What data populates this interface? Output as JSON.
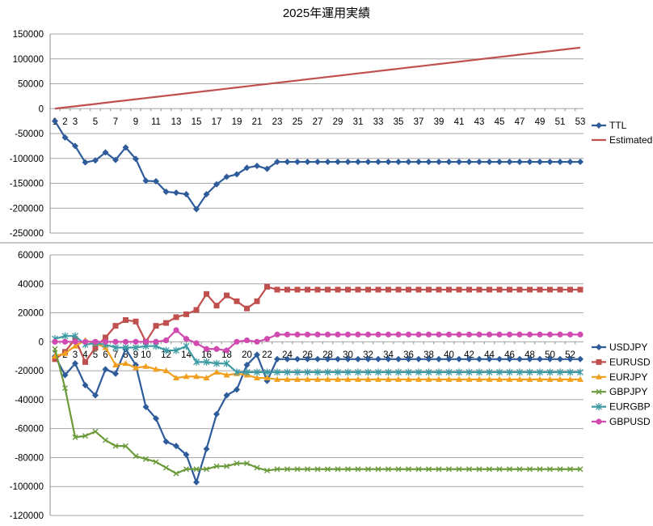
{
  "chart_data": [
    {
      "type": "line",
      "title": "2025年運用実績",
      "xlabel": "",
      "ylabel": "",
      "ylim": [
        -250000,
        150000
      ],
      "yticks": [
        150000,
        100000,
        50000,
        0,
        -50000,
        -100000,
        -150000,
        -200000,
        -250000
      ],
      "xticks": [
        1,
        2,
        3,
        5,
        7,
        9,
        11,
        13,
        15,
        17,
        19,
        21,
        23,
        25,
        27,
        29,
        31,
        33,
        35,
        37,
        39,
        41,
        43,
        45,
        47,
        49,
        51,
        53
      ],
      "x": [
        1,
        2,
        3,
        4,
        5,
        6,
        7,
        8,
        9,
        10,
        11,
        12,
        13,
        14,
        15,
        16,
        17,
        18,
        19,
        20,
        21,
        22,
        23,
        24,
        25,
        26,
        27,
        28,
        29,
        30,
        31,
        32,
        33,
        34,
        35,
        36,
        37,
        38,
        39,
        40,
        41,
        42,
        43,
        44,
        45,
        46,
        47,
        48,
        49,
        50,
        51,
        52,
        53
      ],
      "grid": true,
      "legend": "right",
      "series": [
        {
          "name": "TTL",
          "color": "#2e5b9a",
          "marker": "diamond",
          "values": [
            -25000,
            -58000,
            -75000,
            -108000,
            -104000,
            -88000,
            -103000,
            -78000,
            -101000,
            -145000,
            -146000,
            -167000,
            -169000,
            -172000,
            -202000,
            -172000,
            -152000,
            -137000,
            -132000,
            -119000,
            -115000,
            -121000,
            -107000,
            -107000,
            -107000,
            -107000,
            -107000,
            -107000,
            -107000,
            -107000,
            -107000,
            -107000,
            -107000,
            -107000,
            -107000,
            -107000,
            -107000,
            -107000,
            -107000,
            -107000,
            -107000,
            -107000,
            -107000,
            -107000,
            -107000,
            -107000,
            -107000,
            -107000,
            -107000,
            -107000,
            -107000,
            -107000,
            -107000
          ]
        },
        {
          "name": "Estimated",
          "color": "#c0504d",
          "marker": "none",
          "values": [
            0,
            2400,
            4700,
            7100,
            9400,
            11800,
            14200,
            16500,
            18900,
            21200,
            23600,
            25900,
            28300,
            30700,
            33000,
            35400,
            37700,
            40100,
            42500,
            44800,
            47200,
            49500,
            51900,
            54300,
            56600,
            59000,
            61300,
            63700,
            66000,
            68400,
            70800,
            73100,
            75500,
            77800,
            80200,
            82600,
            84900,
            87300,
            89600,
            92000,
            94300,
            96700,
            99100,
            101400,
            103800,
            106100,
            108500,
            110900,
            113200,
            115600,
            117900,
            120300,
            122600
          ]
        }
      ]
    },
    {
      "type": "line",
      "title": "",
      "xlabel": "",
      "ylabel": "",
      "ylim": [
        -120000,
        60000
      ],
      "yticks": [
        60000,
        40000,
        20000,
        0,
        -20000,
        -40000,
        -60000,
        -80000,
        -100000,
        -120000
      ],
      "xticks": [
        1,
        2,
        3,
        4,
        5,
        6,
        7,
        8,
        9,
        10,
        12,
        14,
        16,
        18,
        20,
        22,
        24,
        26,
        28,
        30,
        32,
        34,
        36,
        38,
        40,
        42,
        44,
        46,
        48,
        50,
        52
      ],
      "x": [
        1,
        2,
        3,
        4,
        5,
        6,
        7,
        8,
        9,
        10,
        11,
        12,
        13,
        14,
        15,
        16,
        17,
        18,
        19,
        20,
        21,
        22,
        23,
        24,
        25,
        26,
        27,
        28,
        29,
        30,
        31,
        32,
        33,
        34,
        35,
        36,
        37,
        38,
        39,
        40,
        41,
        42,
        43,
        44,
        45,
        46,
        47,
        48,
        49,
        50,
        51,
        52,
        53
      ],
      "grid": true,
      "legend": "right",
      "series": [
        {
          "name": "USDJPY",
          "color": "#2e5b9a",
          "marker": "diamond",
          "values": [
            -10000,
            -23000,
            -15000,
            -30000,
            -37000,
            -19000,
            -22000,
            -5000,
            -16000,
            -45000,
            -53000,
            -69000,
            -72000,
            -78000,
            -97000,
            -74000,
            -50000,
            -37000,
            -33000,
            -16000,
            -9000,
            -27000,
            -12000,
            -12000,
            -12000,
            -12000,
            -12000,
            -12000,
            -12000,
            -12000,
            -12000,
            -12000,
            -12000,
            -12000,
            -12000,
            -12000,
            -12000,
            -12000,
            -12000,
            -12000,
            -12000,
            -12000,
            -12000,
            -12000,
            -12000,
            -12000,
            -12000,
            -12000,
            -12000,
            -12000,
            -12000,
            -12000,
            -12000
          ]
        },
        {
          "name": "EURUSD",
          "color": "#c0504d",
          "marker": "square",
          "values": [
            -12000,
            -7000,
            2000,
            -14000,
            -4000,
            3000,
            11000,
            15000,
            14000,
            0,
            11000,
            13000,
            17000,
            19000,
            22000,
            33000,
            25000,
            32000,
            28000,
            23000,
            28000,
            38000,
            36000,
            36000,
            36000,
            36000,
            36000,
            36000,
            36000,
            36000,
            36000,
            36000,
            36000,
            36000,
            36000,
            36000,
            36000,
            36000,
            36000,
            36000,
            36000,
            36000,
            36000,
            36000,
            36000,
            36000,
            36000,
            36000,
            36000,
            36000,
            36000,
            36000,
            36000
          ]
        },
        {
          "name": "EURJPY",
          "color": "#f0a01e",
          "marker": "triangle",
          "values": [
            -10000,
            -8000,
            -3000,
            1000,
            -1000,
            -4000,
            -16000,
            -15000,
            -18000,
            -17000,
            -19000,
            -20000,
            -25000,
            -24000,
            -24000,
            -25000,
            -21000,
            -23000,
            -22000,
            -23000,
            -25000,
            -25000,
            -26000,
            -26000,
            -26000,
            -26000,
            -26000,
            -26000,
            -26000,
            -26000,
            -26000,
            -26000,
            -26000,
            -26000,
            -26000,
            -26000,
            -26000,
            -26000,
            -26000,
            -26000,
            -26000,
            -26000,
            -26000,
            -26000,
            -26000,
            -26000,
            -26000,
            -26000,
            -26000,
            -26000,
            -26000,
            -26000,
            -26000
          ]
        },
        {
          "name": "GBPJPY",
          "color": "#6a9a3a",
          "marker": "x",
          "values": [
            -5000,
            -32000,
            -66000,
            -65000,
            -62000,
            -68000,
            -72000,
            -72000,
            -79000,
            -81000,
            -83000,
            -87000,
            -91000,
            -88000,
            -88000,
            -88000,
            -86000,
            -86000,
            -84000,
            -84000,
            -87000,
            -89000,
            -88000,
            -88000,
            -88000,
            -88000,
            -88000,
            -88000,
            -88000,
            -88000,
            -88000,
            -88000,
            -88000,
            -88000,
            -88000,
            -88000,
            -88000,
            -88000,
            -88000,
            -88000,
            -88000,
            -88000,
            -88000,
            -88000,
            -88000,
            -88000,
            -88000,
            -88000,
            -88000,
            -88000,
            -88000,
            -88000,
            -88000
          ]
        },
        {
          "name": "EURGBP",
          "color": "#3d9aa3",
          "marker": "star",
          "values": [
            2000,
            4000,
            4000,
            -2000,
            -1000,
            -2000,
            -4000,
            -4000,
            -4000,
            -3000,
            -3000,
            -6000,
            -6000,
            -3000,
            -14000,
            -14000,
            -15000,
            -15000,
            -21000,
            -21000,
            -21000,
            -21000,
            -21000,
            -21000,
            -21000,
            -21000,
            -21000,
            -21000,
            -21000,
            -21000,
            -21000,
            -21000,
            -21000,
            -21000,
            -21000,
            -21000,
            -21000,
            -21000,
            -21000,
            -21000,
            -21000,
            -21000,
            -21000,
            -21000,
            -21000,
            -21000,
            -21000,
            -21000,
            -21000,
            -21000,
            -21000,
            -21000,
            -21000
          ]
        },
        {
          "name": "GBPUSD",
          "color": "#d04ab0",
          "marker": "circle",
          "values": [
            0,
            0,
            0,
            0,
            0,
            0,
            0,
            0,
            0,
            0,
            0,
            1000,
            8000,
            2000,
            -1000,
            -5000,
            -5000,
            -6000,
            0,
            1000,
            0,
            2000,
            5000,
            5000,
            5000,
            5000,
            5000,
            5000,
            5000,
            5000,
            5000,
            5000,
            5000,
            5000,
            5000,
            5000,
            5000,
            5000,
            5000,
            5000,
            5000,
            5000,
            5000,
            5000,
            5000,
            5000,
            5000,
            5000,
            5000,
            5000,
            5000,
            5000,
            5000
          ]
        }
      ]
    }
  ]
}
